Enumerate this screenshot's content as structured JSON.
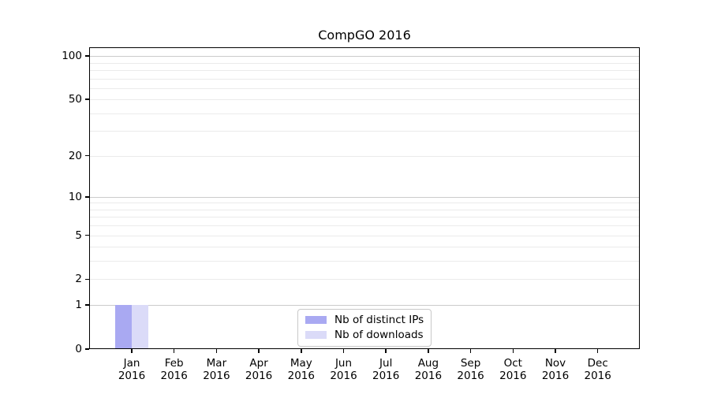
{
  "chart_data": {
    "type": "bar",
    "title": "CompGO 2016",
    "xlabel": "",
    "ylabel": "",
    "year": "2016",
    "categories": [
      "Jan",
      "Feb",
      "Mar",
      "Apr",
      "May",
      "Jun",
      "Jul",
      "Aug",
      "Sep",
      "Oct",
      "Nov",
      "Dec"
    ],
    "series": [
      {
        "name": "Nb of distinct IPs",
        "color": "#a9a9f2",
        "values": [
          1,
          0,
          0,
          0,
          0,
          0,
          0,
          0,
          0,
          0,
          0,
          0
        ]
      },
      {
        "name": "Nb of downloads",
        "color": "#dbdbf8",
        "values": [
          1,
          0,
          0,
          0,
          0,
          0,
          0,
          0,
          0,
          0,
          0,
          0
        ]
      }
    ],
    "y_axis": {
      "scale": "log1p",
      "ylim": [
        0,
        115
      ],
      "tick_values": [
        0,
        1,
        2,
        5,
        10,
        20,
        50,
        100
      ],
      "tick_labels": [
        "0",
        "1",
        "2",
        "5",
        "10",
        "20",
        "50",
        "100"
      ],
      "major_gridlines": [
        1,
        10,
        100
      ],
      "minor_gridlines": [
        2,
        3,
        4,
        5,
        6,
        7,
        8,
        9,
        20,
        30,
        40,
        50,
        60,
        70,
        80,
        90
      ]
    },
    "grid": true,
    "legend_position": "lower center"
  },
  "colors": {
    "major_grid": "#cbcbcb",
    "minor_grid": "#ebebeb",
    "axis": "#000000",
    "text": "#000000",
    "legend_border": "#c9c9c9",
    "background": "#ffffff"
  }
}
